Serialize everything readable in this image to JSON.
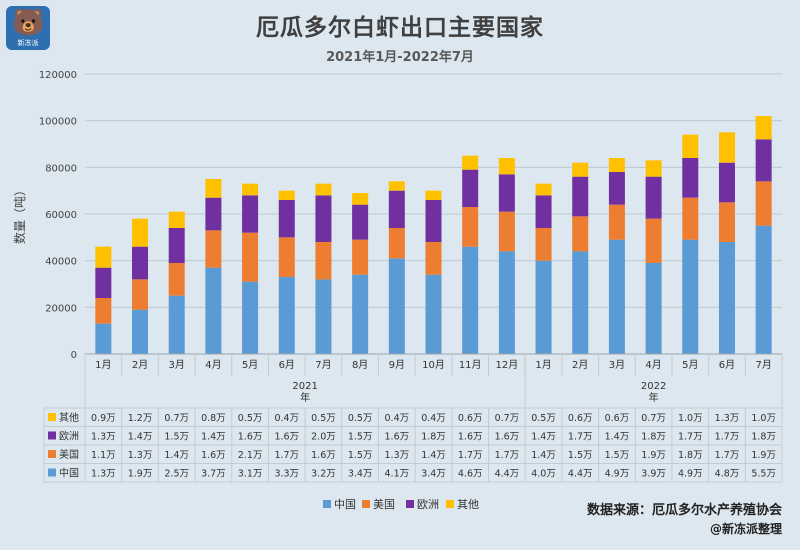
{
  "header": {
    "title": "厄瓜多尔白虾出口主要国家",
    "subtitle": "2021年1月-2022年7月",
    "logo_text": "新冻派"
  },
  "footer": {
    "source": "数据来源：厄瓜多尔水产养殖协会",
    "author": "@新冻派整理"
  },
  "colors": {
    "中国": "#5b9bd5",
    "美国": "#ed7d31",
    "欧洲": "#7030a0",
    "其他": "#ffc000"
  },
  "chart_data": {
    "type": "bar",
    "stacked": true,
    "ylabel": "数量（吨）",
    "ylim": [
      0,
      120000
    ],
    "yticks": [
      0,
      20000,
      40000,
      60000,
      80000,
      100000,
      120000
    ],
    "grid": true,
    "legend_position": "bottom",
    "categories": [
      "1月",
      "2月",
      "3月",
      "4月",
      "5月",
      "6月",
      "7月",
      "8月",
      "9月",
      "10月",
      "11月",
      "12月",
      "1月",
      "2月",
      "3月",
      "4月",
      "5月",
      "6月",
      "7月"
    ],
    "year_groups": [
      {
        "label": "2021",
        "suffix": "年",
        "count": 12
      },
      {
        "label": "2022",
        "suffix": "年",
        "count": 7
      }
    ],
    "series": [
      {
        "name": "中国",
        "values": [
          13000,
          19000,
          25000,
          37000,
          31000,
          33000,
          32000,
          34000,
          41000,
          34000,
          46000,
          44000,
          40000,
          44000,
          49000,
          39000,
          49000,
          48000,
          55000
        ],
        "labels": [
          "1.3万",
          "1.9万",
          "2.5万",
          "3.7万",
          "3.1万",
          "3.3万",
          "3.2万",
          "3.4万",
          "4.1万",
          "3.4万",
          "4.6万",
          "4.4万",
          "4.0万",
          "4.4万",
          "4.9万",
          "3.9万",
          "4.9万",
          "4.8万",
          "5.5万"
        ]
      },
      {
        "name": "美国",
        "values": [
          11000,
          13000,
          14000,
          16000,
          21000,
          17000,
          16000,
          15000,
          13000,
          14000,
          17000,
          17000,
          14000,
          15000,
          15000,
          19000,
          18000,
          17000,
          19000
        ],
        "labels": [
          "1.1万",
          "1.3万",
          "1.4万",
          "1.6万",
          "2.1万",
          "1.7万",
          "1.6万",
          "1.5万",
          "1.3万",
          "1.4万",
          "1.7万",
          "1.7万",
          "1.4万",
          "1.5万",
          "1.5万",
          "1.9万",
          "1.8万",
          "1.7万",
          "1.9万"
        ]
      },
      {
        "name": "欧洲",
        "values": [
          13000,
          14000,
          15000,
          14000,
          16000,
          16000,
          20000,
          15000,
          16000,
          18000,
          16000,
          16000,
          14000,
          17000,
          14000,
          18000,
          17000,
          17000,
          18000
        ],
        "labels": [
          "1.3万",
          "1.4万",
          "1.5万",
          "1.4万",
          "1.6万",
          "1.6万",
          "2.0万",
          "1.5万",
          "1.6万",
          "1.8万",
          "1.6万",
          "1.6万",
          "1.4万",
          "1.7万",
          "1.4万",
          "1.8万",
          "1.7万",
          "1.7万",
          "1.8万"
        ]
      },
      {
        "name": "其他",
        "values": [
          9000,
          12000,
          7000,
          8000,
          5000,
          4000,
          5000,
          5000,
          4000,
          4000,
          6000,
          7000,
          5000,
          6000,
          6000,
          7000,
          10000,
          13000,
          10000
        ],
        "labels": [
          "0.9万",
          "1.2万",
          "0.7万",
          "0.8万",
          "0.5万",
          "0.4万",
          "0.5万",
          "0.5万",
          "0.4万",
          "0.4万",
          "0.6万",
          "0.7万",
          "0.5万",
          "0.6万",
          "0.6万",
          "0.7万",
          "1.0万",
          "1.3万",
          "1.0万"
        ]
      }
    ]
  }
}
